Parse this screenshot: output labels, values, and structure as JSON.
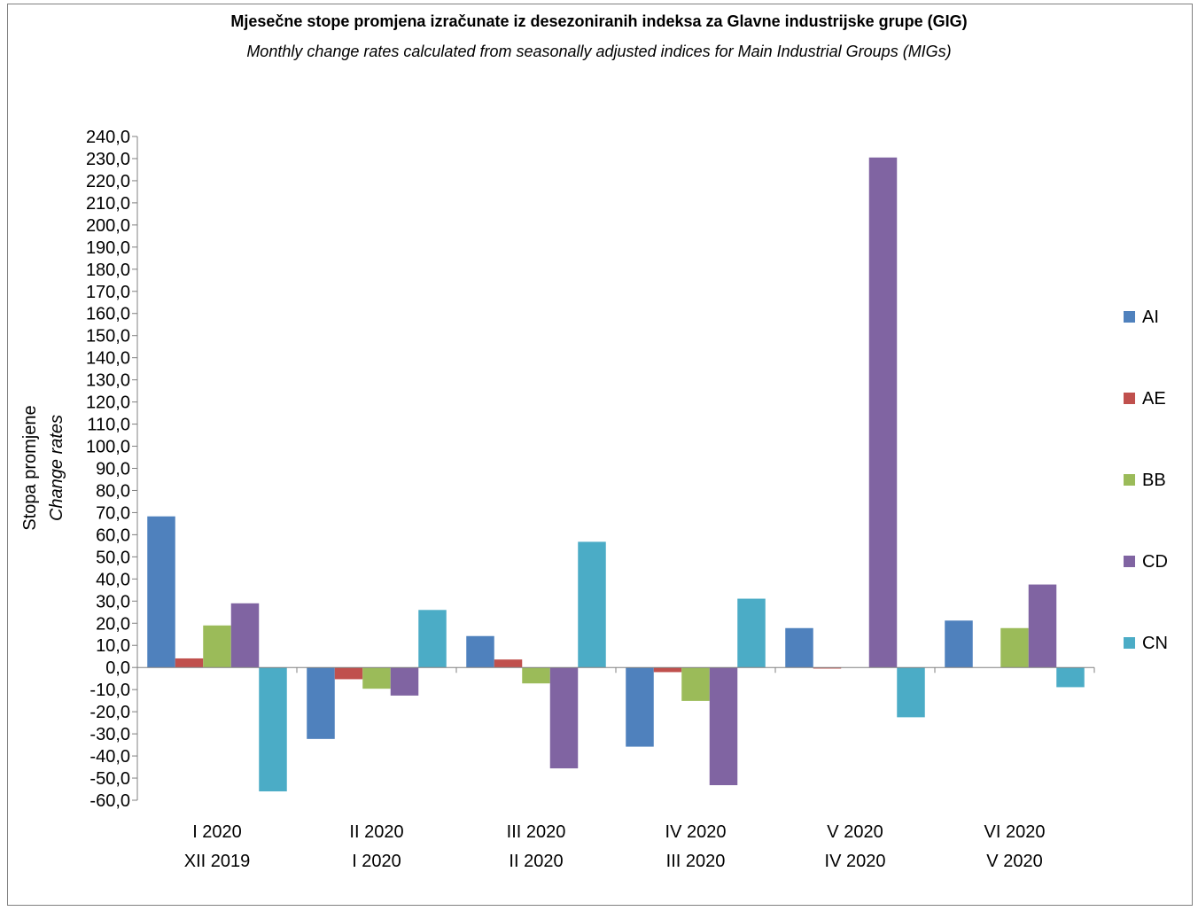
{
  "chart_data": {
    "type": "bar",
    "title": "Mjesečne stope promjena izračunate iz desezoniranih indeksa za Glavne industrijske grupe (GIG)",
    "subtitle": "Monthly change rates calculated from seasonally adjusted indices for Main Industrial Groups (MIGs)",
    "ylabel": "Stopa promjene",
    "ylabel_en": "Change rates",
    "ylim": [
      -60,
      240
    ],
    "ytick_step": 10,
    "ytick_labels": [
      "240,0",
      "230,0",
      "220,0",
      "210,0",
      "200,0",
      "190,0",
      "180,0",
      "170,0",
      "160,0",
      "150,0",
      "140,0",
      "130,0",
      "120,0",
      "110,0",
      "100,0",
      "90,0",
      "80,0",
      "70,0",
      "60,0",
      "50,0",
      "40,0",
      "30,0",
      "20,0",
      "10,0",
      "0,0",
      "-10,0",
      "-20,0",
      "-30,0",
      "-40,0",
      "-50,0",
      "-60,0"
    ],
    "categories": [
      {
        "line1": "I 2020",
        "line2": "XII 2019"
      },
      {
        "line1": "II 2020",
        "line2": "I 2020"
      },
      {
        "line1": "III 2020",
        "line2": "II 2020"
      },
      {
        "line1": "IV 2020",
        "line2": "III 2020"
      },
      {
        "line1": "V 2020",
        "line2": "IV 2020"
      },
      {
        "line1": "VI 2020",
        "line2": "V 2020"
      }
    ],
    "series": [
      {
        "name": "AI",
        "color": "#4f81bd",
        "values": [
          68.3,
          -32.3,
          14.2,
          -35.8,
          17.8,
          21.2
        ]
      },
      {
        "name": "AE",
        "color": "#c0504d",
        "values": [
          4.1,
          -5.3,
          3.6,
          -2.1,
          -0.5,
          0.0
        ]
      },
      {
        "name": "BB",
        "color": "#9bbb59",
        "values": [
          19.0,
          -9.6,
          -7.2,
          -15.1,
          0.0,
          17.8
        ]
      },
      {
        "name": "CD",
        "color": "#8064a2",
        "values": [
          29.0,
          -12.7,
          -45.6,
          -53.2,
          230.5,
          37.5
        ]
      },
      {
        "name": "CN",
        "color": "#4bacc6",
        "values": [
          -56.0,
          26.0,
          56.8,
          31.1,
          -22.5,
          -8.9
        ]
      }
    ],
    "legend_position": "right",
    "grid": false
  }
}
